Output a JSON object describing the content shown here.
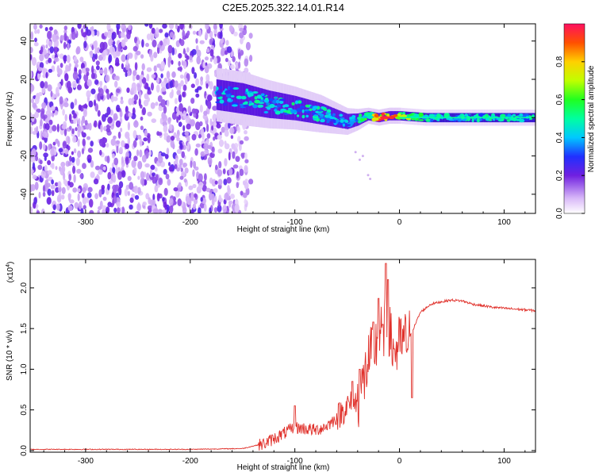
{
  "title": "C2E5.2025.322.14.01.R14",
  "chart_data": [
    {
      "type": "heatmap",
      "name": "spectrogram",
      "xlabel": "Height of straight line (km)",
      "ylabel": "Frequency (Hz)",
      "xlim": [
        -353,
        130
      ],
      "ylim": [
        -50,
        49
      ],
      "xticks": [
        -300,
        -200,
        -100,
        0,
        100
      ],
      "yticks": [
        -40,
        -20,
        0,
        20,
        40
      ],
      "colorbar": {
        "label": "Normalized spectral amplitude",
        "range": [
          0,
          1
        ],
        "ticks": [
          0.0,
          0.2,
          0.4,
          0.6,
          0.8
        ]
      },
      "noise_region_x": [
        -353,
        -150
      ],
      "ridge": {
        "x": [
          -175,
          -150,
          -125,
          -100,
          -75,
          -50,
          -40,
          -30,
          -20,
          -10,
          0,
          25,
          50,
          75,
          100,
          130
        ],
        "freq": [
          12,
          10,
          7,
          5,
          2,
          -2,
          -1,
          1,
          0,
          1,
          1,
          0,
          0,
          0,
          0,
          0
        ],
        "width": [
          10,
          10,
          9,
          8,
          7,
          5,
          4,
          3,
          3,
          3,
          3,
          3,
          3,
          3,
          3,
          3
        ],
        "amplitude": [
          0.45,
          0.45,
          0.5,
          0.5,
          0.5,
          0.4,
          0.5,
          0.6,
          0.9,
          0.95,
          0.8,
          0.5,
          0.5,
          0.5,
          0.5,
          0.5
        ]
      }
    },
    {
      "type": "line",
      "name": "snr",
      "xlabel": "Height of straight line (km)",
      "ylabel": "SNR (10 * v/v)",
      "yscale_note": "(x10",
      "yscale_exp": "4",
      "xlim": [
        -353,
        130
      ],
      "ylim": [
        -0.02,
        2.35
      ],
      "xticks": [
        -300,
        -200,
        -100,
        0,
        100
      ],
      "yticks": [
        0.0,
        0.5,
        1.0,
        1.5,
        2.0
      ],
      "color": "#e0302a",
      "x": [
        -353,
        -200,
        -150,
        -130,
        -115,
        -105,
        -100,
        -90,
        -80,
        -70,
        -60,
        -50,
        -40,
        -35,
        -30,
        -25,
        -20,
        -15,
        -12,
        -10,
        -5,
        0,
        5,
        10,
        15,
        20,
        30,
        40,
        50,
        60,
        70,
        80,
        90,
        100,
        110,
        120,
        130
      ],
      "y": [
        0.01,
        0.01,
        0.02,
        0.08,
        0.18,
        0.25,
        0.28,
        0.27,
        0.25,
        0.3,
        0.4,
        0.55,
        0.6,
        0.8,
        1.1,
        1.2,
        1.4,
        1.5,
        1.6,
        1.45,
        1.2,
        1.3,
        1.35,
        1.4,
        1.55,
        1.7,
        1.8,
        1.83,
        1.85,
        1.84,
        1.8,
        1.78,
        1.76,
        1.75,
        1.74,
        1.73,
        1.72
      ],
      "spikes": [
        {
          "x": -100,
          "y": 0.55
        },
        {
          "x": -45,
          "y": 0.85
        },
        {
          "x": -38,
          "y": 1.0
        },
        {
          "x": -25,
          "y": 1.58
        },
        {
          "x": -20,
          "y": 1.87
        },
        {
          "x": -16,
          "y": 1.55
        },
        {
          "x": -13,
          "y": 2.3
        },
        {
          "x": -11,
          "y": 2.1
        },
        {
          "x": -5,
          "y": 1.25
        },
        {
          "x": 12,
          "y": 0.65
        }
      ]
    }
  ]
}
